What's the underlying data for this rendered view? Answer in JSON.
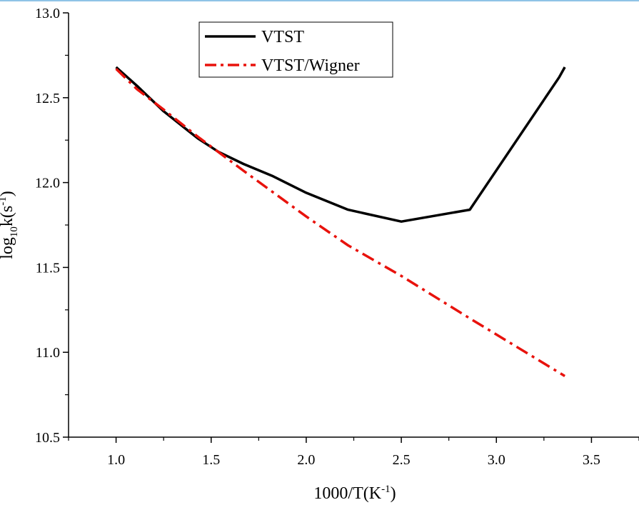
{
  "chart_data": {
    "type": "line",
    "title": "",
    "xlabel": "1000/T(K",
    "xlabel_sup": "-1",
    "xlabel_close": ")",
    "ylabel_main": "log",
    "ylabel_sub": "10",
    "ylabel_k": "k(s",
    "ylabel_sup": "-1",
    "ylabel_close": ")",
    "xlim": [
      0.75,
      3.75
    ],
    "ylim": [
      10.5,
      13.0
    ],
    "xticks": [
      1.0,
      1.5,
      2.0,
      2.5,
      3.0,
      3.5
    ],
    "xtick_labels": [
      "1.0",
      "1.5",
      "2.0",
      "2.5",
      "3.0",
      "3.5"
    ],
    "yticks": [
      10.5,
      11.0,
      11.5,
      12.0,
      12.5,
      13.0
    ],
    "ytick_labels": [
      "10.5",
      "11.0",
      "11.5",
      "12.0",
      "12.5",
      "13.0"
    ],
    "legend_position": "top-center",
    "series": [
      {
        "name": "VTST",
        "color": "#000000",
        "dash": "solid",
        "x": [
          1.0,
          1.11,
          1.25,
          1.43,
          1.54,
          1.67,
          1.82,
          2.0,
          2.22,
          2.5,
          2.86,
          3.33,
          3.36
        ],
        "y": [
          12.68,
          12.57,
          12.42,
          12.26,
          12.18,
          12.11,
          12.04,
          11.94,
          11.84,
          11.77,
          11.84,
          12.62,
          12.68
        ]
      },
      {
        "name": "VTST/Wigner",
        "color": "#e8120c",
        "dash": "dashdot",
        "x": [
          1.0,
          1.11,
          1.25,
          1.43,
          1.67,
          2.0,
          2.22,
          2.5,
          2.86,
          3.36
        ],
        "y": [
          12.67,
          12.55,
          12.43,
          12.27,
          12.07,
          11.8,
          11.63,
          11.45,
          11.2,
          10.86
        ]
      }
    ]
  }
}
